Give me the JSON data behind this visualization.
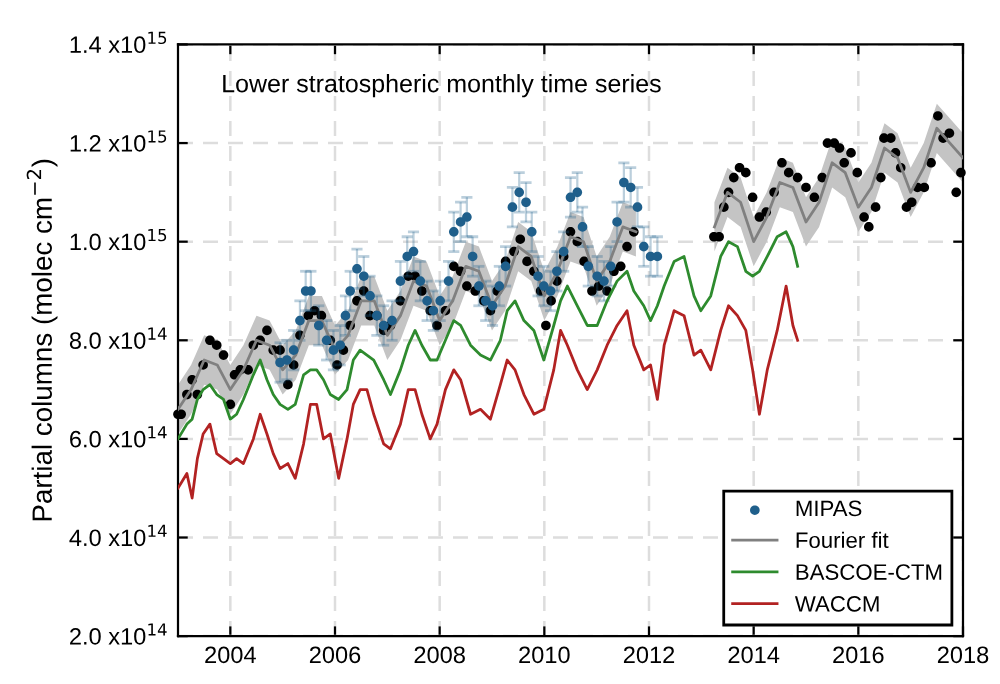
{
  "chart_data": {
    "type": "scatter",
    "title": "Lower stratospheric monthly time series",
    "ylabel": "Partial columns (molec cm$^{−2}$)",
    "xlim": [
      2003,
      2018
    ],
    "xticks": [
      2004,
      2006,
      2008,
      2010,
      2012,
      2014,
      2016,
      2018
    ],
    "ylim": [
      200000000000000.0,
      1400000000000000.0
    ],
    "yticks": [
      {
        "value": 200000000000000.0,
        "label": "2.0 x10$^{14}$"
      },
      {
        "value": 400000000000000.0,
        "label": "4.0 x10$^{14}$"
      },
      {
        "value": 600000000000000.0,
        "label": "6.0 x10$^{14}$"
      },
      {
        "value": 800000000000000.0,
        "label": "8.0 x10$^{14}$"
      },
      {
        "value": 1000000000000000.0,
        "label": "1.0 x10$^{15}$"
      },
      {
        "value": 1200000000000000.0,
        "label": "1.2 x10$^{15}$"
      },
      {
        "value": 1400000000000000.0,
        "label": "1.4 x10$^{15}$"
      }
    ],
    "grid": true,
    "legend": "bottom right",
    "series": [
      {
        "color": "#000000",
        "x": [
          2003.0,
          2003.06,
          2003.17,
          2003.27,
          2003.37,
          2003.48,
          2003.61,
          2003.74,
          2003.87,
          2004.0,
          2004.08,
          2004.19,
          2004.34,
          2004.44,
          2004.57,
          2004.7,
          2004.82,
          2004.95,
          2005.1,
          2005.21,
          2005.33,
          2005.49,
          2005.61,
          2005.74,
          2005.91,
          2006.04,
          2006.16,
          2006.29,
          2006.42,
          2006.55,
          2006.67,
          2006.8,
          2006.93,
          2007.06,
          2007.25,
          2007.4,
          2007.53,
          2007.66,
          2007.82,
          2007.95,
          2008.11,
          2008.27,
          2008.4,
          2008.52,
          2008.68,
          2008.84,
          2008.97,
          2009.1,
          2009.26,
          2009.42,
          2009.54,
          2009.67,
          2009.8,
          2009.93,
          2010.03,
          2010.13,
          2010.24,
          2010.37,
          2010.5,
          2010.63,
          2010.76,
          2010.91,
          2011.04,
          2011.2,
          2011.33,
          2011.46,
          2011.58,
          2011.71,
          2013.24,
          2013.34,
          2013.43,
          2013.52,
          2013.62,
          2013.73,
          2013.85,
          2013.98,
          2014.11,
          2014.24,
          2014.39,
          2014.54,
          2014.67,
          2014.84,
          2015.0,
          2015.16,
          2015.31,
          2015.41,
          2015.54,
          2015.64,
          2015.73,
          2015.86,
          2015.98,
          2016.11,
          2016.2,
          2016.33,
          2016.43,
          2016.49,
          2016.62,
          2016.71,
          2016.81,
          2016.92,
          2017.02,
          2017.13,
          2017.26,
          2017.39,
          2017.52,
          2017.62,
          2017.74,
          2017.87,
          2017.96
        ],
        "values": [
          650000000000000.0,
          650000000000000.0,
          690000000000000.0,
          720000000000000.0,
          690000000000000.0,
          750000000000000.0,
          800000000000000.0,
          790000000000000.0,
          770000000000000.0,
          670000000000000.0,
          730000000000000.0,
          740000000000000.0,
          740000000000000.0,
          790000000000000.0,
          800000000000000.0,
          820000000000000.0,
          780000000000000.0,
          780000000000000.0,
          710000000000000.0,
          750000000000000.0,
          810000000000000.0,
          850000000000000.0,
          860000000000000.0,
          850000000000000.0,
          800000000000000.0,
          750000000000000.0,
          780000000000000.0,
          830000000000000.0,
          880000000000000.0,
          900000000000000.0,
          850000000000000.0,
          850000000000000.0,
          820000000000000.0,
          830000000000000.0,
          880000000000000.0,
          930000000000000.0,
          930000000000000.0,
          900000000000000.0,
          860000000000000.0,
          830000000000000.0,
          860000000000000.0,
          950000000000000.0,
          940000000000000.0,
          910000000000000.0,
          900000000000000.0,
          880000000000000.0,
          860000000000000.0,
          900000000000000.0,
          960000000000000.0,
          980000000000000.0,
          1005000000000000.0,
          960000000000000.0,
          940000000000000.0,
          900000000000000.0,
          830000000000000.0,
          880000000000000.0,
          920000000000000.0,
          970000000000000.0,
          1020000000000000.0,
          1000000000000000.0,
          960000000000000.0,
          900000000000000.0,
          910000000000000.0,
          900000000000000.0,
          940000000000000.0,
          950000000000000.0,
          990000000000000.0,
          1020000000000000.0,
          1010000000000000.0,
          1010000000000000.0,
          1070000000000000.0,
          1100000000000000.0,
          1130000000000000.0,
          1150000000000000.0,
          1140000000000000.0,
          1090000000000000.0,
          1050000000000000.0,
          1060000000000000.0,
          1100000000000000.0,
          1160000000000000.0,
          1140000000000000.0,
          1130000000000000.0,
          1110000000000000.0,
          1090000000000000.0,
          1130000000000000.0,
          1200000000000000.0,
          1200000000000000.0,
          1190000000000000.0,
          1160000000000000.0,
          1180000000000000.0,
          1140000000000000.0,
          1050000000000000.0,
          1030000000000000.0,
          1070000000000000.0,
          1130000000000000.0,
          1210000000000000.0,
          1210000000000000.0,
          1180000000000000.0,
          1150000000000000.0,
          1070000000000000.0,
          1080000000000000.0,
          1110000000000000.0,
          1110000000000000.0,
          1160000000000000.0,
          1255000000000000.0,
          1210000000000000.0,
          1220000000000000.0,
          1100000000000000.0,
          1140000000000000.0
        ]
      },
      {
        "name": "MIPAS",
        "color": "#1f5f8b",
        "x": [
          2004.95,
          2005.08,
          2005.21,
          2005.33,
          2005.44,
          2005.54,
          2005.69,
          2005.84,
          2005.97,
          2006.1,
          2006.2,
          2006.29,
          2006.42,
          2006.55,
          2006.67,
          2006.8,
          2006.93,
          2007.09,
          2007.25,
          2007.38,
          2007.5,
          2007.63,
          2007.76,
          2007.88,
          2008.01,
          2008.17,
          2008.27,
          2008.4,
          2008.52,
          2008.63,
          2008.75,
          2008.88,
          2009.01,
          2009.14,
          2009.26,
          2009.39,
          2009.52,
          2009.65,
          2009.76,
          2009.88,
          2009.99,
          2010.12,
          2010.24,
          2010.37,
          2010.5,
          2010.63,
          2010.73,
          2010.84,
          2011.01,
          2011.14,
          2011.27,
          2011.39,
          2011.52,
          2011.65,
          2011.78,
          2011.9,
          2012.03,
          2012.16
        ],
        "values": [
          755000000000000.0,
          760000000000000.0,
          780000000000000.0,
          840000000000000.0,
          900000000000000.0,
          900000000000000.0,
          830000000000000.0,
          800000000000000.0,
          780000000000000.0,
          790000000000000.0,
          850000000000000.0,
          900000000000000.0,
          945000000000000.0,
          930000000000000.0,
          890000000000000.0,
          850000000000000.0,
          830000000000000.0,
          840000000000000.0,
          920000000000000.0,
          970000000000000.0,
          980000000000000.0,
          920000000000000.0,
          880000000000000.0,
          860000000000000.0,
          880000000000000.0,
          920000000000000.0,
          1020000000000000.0,
          1040000000000000.0,
          1050000000000000.0,
          970000000000000.0,
          910000000000000.0,
          880000000000000.0,
          870000000000000.0,
          910000000000000.0,
          950000000000000.0,
          1070000000000000.0,
          1100000000000000.0,
          1080000000000000.0,
          1020000000000000.0,
          930000000000000.0,
          910000000000000.0,
          900000000000000.0,
          940000000000000.0,
          980000000000000.0,
          1090000000000000.0,
          1100000000000000.0,
          1030000000000000.0,
          950000000000000.0,
          930000000000000.0,
          920000000000000.0,
          950000000000000.0,
          1040000000000000.0,
          1120000000000000.0,
          1110000000000000.0,
          1070000000000000.0,
          990000000000000.0,
          970000000000000.0,
          970000000000000.0
        ],
        "errors": [
          40000000000000.0,
          40000000000000.0,
          40000000000000.0,
          40000000000000.0,
          40000000000000.0,
          40000000000000.0,
          40000000000000.0,
          40000000000000.0,
          40000000000000.0,
          40000000000000.0,
          40000000000000.0,
          40000000000000.0,
          40000000000000.0,
          40000000000000.0,
          40000000000000.0,
          40000000000000.0,
          40000000000000.0,
          40000000000000.0,
          40000000000000.0,
          40000000000000.0,
          40000000000000.0,
          40000000000000.0,
          40000000000000.0,
          40000000000000.0,
          40000000000000.0,
          40000000000000.0,
          40000000000000.0,
          40000000000000.0,
          40000000000000.0,
          40000000000000.0,
          40000000000000.0,
          40000000000000.0,
          40000000000000.0,
          40000000000000.0,
          40000000000000.0,
          40000000000000.0,
          40000000000000.0,
          40000000000000.0,
          40000000000000.0,
          40000000000000.0,
          40000000000000.0,
          40000000000000.0,
          40000000000000.0,
          40000000000000.0,
          40000000000000.0,
          40000000000000.0,
          40000000000000.0,
          40000000000000.0,
          40000000000000.0,
          40000000000000.0,
          40000000000000.0,
          40000000000000.0,
          40000000000000.0,
          40000000000000.0,
          40000000000000.0,
          40000000000000.0,
          40000000000000.0,
          40000000000000.0
        ]
      },
      {
        "type": "line",
        "name": "Fourier fit",
        "color": "#808080",
        "x": [
          2003.0,
          2003.25,
          2003.5,
          2003.75,
          2004.0,
          2004.25,
          2004.5,
          2004.75,
          2005.0,
          2005.25,
          2005.5,
          2005.75,
          2006.0,
          2006.25,
          2006.5,
          2006.75,
          2007.0,
          2007.25,
          2007.5,
          2007.75,
          2008.0,
          2008.25,
          2008.5,
          2008.75,
          2009.0,
          2009.25,
          2009.5,
          2009.75,
          2010.0,
          2010.25,
          2010.5,
          2010.75,
          2011.0,
          2011.25,
          2011.5,
          2011.75,
          2012.5,
          2013.25,
          2013.5,
          2013.75,
          2014.0,
          2014.25,
          2014.5,
          2014.75,
          2015.0,
          2015.25,
          2015.5,
          2015.75,
          2016.0,
          2016.25,
          2016.5,
          2016.75,
          2017.0,
          2017.25,
          2017.5,
          2017.75,
          2018.0
        ],
        "values": [
          660000000000000.0,
          700000000000000.0,
          760000000000000.0,
          750000000000000.0,
          700000000000000.0,
          740000000000000.0,
          800000000000000.0,
          790000000000000.0,
          740000000000000.0,
          770000000000000.0,
          840000000000000.0,
          840000000000000.0,
          780000000000000.0,
          810000000000000.0,
          880000000000000.0,
          880000000000000.0,
          810000000000000.0,
          850000000000000.0,
          920000000000000.0,
          910000000000000.0,
          840000000000000.0,
          880000000000000.0,
          950000000000000.0,
          940000000000000.0,
          870000000000000.0,
          910000000000000.0,
          990000000000000.0,
          970000000000000.0,
          890000000000000.0,
          940000000000000.0,
          1010000000000000.0,
          1000000000000000.0,
          920000000000000.0,
          960000000000000.0,
          1030000000000000.0,
          1020000000000000.0,
          null,
          1030000000000000.0,
          1100000000000000.0,
          1080000000000000.0,
          1000000000000000.0,
          1050000000000000.0,
          1120000000000000.0,
          1110000000000000.0,
          1040000000000000.0,
          1080000000000000.0,
          1160000000000000.0,
          1140000000000000.0,
          1070000000000000.0,
          1110000000000000.0,
          1190000000000000.0,
          1170000000000000.0,
          1100000000000000.0,
          1150000000000000.0,
          1230000000000000.0,
          1200000000000000.0,
          1170000000000000.0
        ],
        "lower": [
          610000000000000.0,
          650000000000000.0,
          710000000000000.0,
          700000000000000.0,
          650000000000000.0,
          690000000000000.0,
          750000000000000.0,
          740000000000000.0,
          690000000000000.0,
          720000000000000.0,
          790000000000000.0,
          790000000000000.0,
          730000000000000.0,
          760000000000000.0,
          830000000000000.0,
          830000000000000.0,
          760000000000000.0,
          800000000000000.0,
          870000000000000.0,
          860000000000000.0,
          790000000000000.0,
          830000000000000.0,
          900000000000000.0,
          890000000000000.0,
          820000000000000.0,
          860000000000000.0,
          940000000000000.0,
          920000000000000.0,
          840000000000000.0,
          890000000000000.0,
          960000000000000.0,
          950000000000000.0,
          870000000000000.0,
          910000000000000.0,
          980000000000000.0,
          970000000000000.0,
          null,
          980000000000000.0,
          1050000000000000.0,
          1030000000000000.0,
          950000000000000.0,
          1000000000000000.0,
          1070000000000000.0,
          1060000000000000.0,
          990000000000000.0,
          1030000000000000.0,
          1110000000000000.0,
          1090000000000000.0,
          1020000000000000.0,
          1060000000000000.0,
          1140000000000000.0,
          1120000000000000.0,
          1050000000000000.0,
          1100000000000000.0,
          1180000000000000.0,
          1150000000000000.0,
          1120000000000000.0
        ],
        "upper": [
          710000000000000.0,
          750000000000000.0,
          810000000000000.0,
          800000000000000.0,
          750000000000000.0,
          790000000000000.0,
          850000000000000.0,
          840000000000000.0,
          790000000000000.0,
          820000000000000.0,
          890000000000000.0,
          890000000000000.0,
          830000000000000.0,
          860000000000000.0,
          930000000000000.0,
          930000000000000.0,
          860000000000000.0,
          900000000000000.0,
          970000000000000.0,
          960000000000000.0,
          890000000000000.0,
          930000000000000.0,
          1000000000000000.0,
          990000000000000.0,
          920000000000000.0,
          960000000000000.0,
          1040000000000000.0,
          1020000000000000.0,
          940000000000000.0,
          990000000000000.0,
          1060000000000000.0,
          1050000000000000.0,
          970000000000000.0,
          1010000000000000.0,
          1080000000000000.0,
          1070000000000000.0,
          null,
          1080000000000000.0,
          1150000000000000.0,
          1130000000000000.0,
          1050000000000000.0,
          1100000000000000.0,
          1170000000000000.0,
          1160000000000000.0,
          1090000000000000.0,
          1130000000000000.0,
          1210000000000000.0,
          1190000000000000.0,
          1120000000000000.0,
          1160000000000000.0,
          1240000000000000.0,
          1220000000000000.0,
          1150000000000000.0,
          1200000000000000.0,
          1280000000000000.0,
          1250000000000000.0,
          1220000000000000.0
        ]
      },
      {
        "type": "line",
        "name": "BASCOE-CTM",
        "color": "#2e8b2e",
        "x": [
          2003.0,
          2003.17,
          2003.27,
          2003.37,
          2003.48,
          2003.61,
          2003.74,
          2003.87,
          2004.0,
          2004.12,
          2004.25,
          2004.44,
          2004.57,
          2004.7,
          2004.82,
          2004.95,
          2005.1,
          2005.24,
          2005.4,
          2005.53,
          2005.65,
          2005.78,
          2005.91,
          2006.07,
          2006.23,
          2006.35,
          2006.48,
          2006.61,
          2006.74,
          2006.93,
          2007.06,
          2007.25,
          2007.4,
          2007.53,
          2007.66,
          2007.82,
          2007.95,
          2008.11,
          2008.27,
          2008.4,
          2008.59,
          2008.78,
          2008.97,
          2009.16,
          2009.29,
          2009.44,
          2009.61,
          2009.8,
          2009.99,
          2010.18,
          2010.31,
          2010.44,
          2010.63,
          2010.82,
          2011.01,
          2011.2,
          2011.39,
          2011.58,
          2011.71,
          2011.9,
          2012.03,
          2012.16,
          2012.29,
          2012.48,
          2012.67,
          2012.86,
          2012.99,
          2013.18,
          2013.37,
          2013.52,
          2013.69,
          2013.85,
          2013.98,
          2014.11,
          2014.26,
          2014.45,
          2014.62,
          2014.75,
          2014.84
        ],
        "values": [
          600000000000000.0,
          630000000000000.0,
          640000000000000.0,
          680000000000000.0,
          700000000000000.0,
          710000000000000.0,
          690000000000000.0,
          680000000000000.0,
          640000000000000.0,
          650000000000000.0,
          680000000000000.0,
          730000000000000.0,
          760000000000000.0,
          720000000000000.0,
          690000000000000.0,
          670000000000000.0,
          660000000000000.0,
          670000000000000.0,
          730000000000000.0,
          740000000000000.0,
          740000000000000.0,
          720000000000000.0,
          690000000000000.0,
          680000000000000.0,
          700000000000000.0,
          760000000000000.0,
          780000000000000.0,
          770000000000000.0,
          760000000000000.0,
          720000000000000.0,
          690000000000000.0,
          740000000000000.0,
          790000000000000.0,
          820000000000000.0,
          790000000000000.0,
          760000000000000.0,
          760000000000000.0,
          800000000000000.0,
          840000000000000.0,
          830000000000000.0,
          790000000000000.0,
          770000000000000.0,
          760000000000000.0,
          800000000000000.0,
          860000000000000.0,
          880000000000000.0,
          840000000000000.0,
          820000000000000.0,
          760000000000000.0,
          830000000000000.0,
          880000000000000.0,
          910000000000000.0,
          870000000000000.0,
          830000000000000.0,
          830000000000000.0,
          880000000000000.0,
          920000000000000.0,
          940000000000000.0,
          900000000000000.0,
          870000000000000.0,
          840000000000000.0,
          870000000000000.0,
          910000000000000.0,
          960000000000000.0,
          970000000000000.0,
          890000000000000.0,
          860000000000000.0,
          890000000000000.0,
          970000000000000.0,
          1000000000000000.0,
          990000000000000.0,
          940000000000000.0,
          930000000000000.0,
          940000000000000.0,
          970000000000000.0,
          1010000000000000.0,
          1020000000000000.0,
          990000000000000.0,
          950000000000000.0
        ]
      },
      {
        "type": "line",
        "name": "WACCM",
        "color": "#b22222",
        "x": [
          2003.0,
          2003.17,
          2003.27,
          2003.37,
          2003.48,
          2003.61,
          2003.74,
          2003.87,
          2004.0,
          2004.12,
          2004.25,
          2004.44,
          2004.57,
          2004.7,
          2004.82,
          2004.95,
          2005.1,
          2005.24,
          2005.4,
          2005.53,
          2005.65,
          2005.78,
          2005.91,
          2006.07,
          2006.23,
          2006.35,
          2006.48,
          2006.61,
          2006.74,
          2006.93,
          2007.06,
          2007.25,
          2007.4,
          2007.53,
          2007.66,
          2007.82,
          2007.95,
          2008.11,
          2008.27,
          2008.4,
          2008.59,
          2008.78,
          2008.97,
          2009.16,
          2009.29,
          2009.44,
          2009.61,
          2009.8,
          2009.99,
          2010.18,
          2010.31,
          2010.44,
          2010.63,
          2010.82,
          2011.01,
          2011.2,
          2011.39,
          2011.58,
          2011.71,
          2011.9,
          2012.03,
          2012.16,
          2012.29,
          2012.48,
          2012.67,
          2012.86,
          2012.99,
          2013.18,
          2013.37,
          2013.52,
          2013.69,
          2013.85,
          2013.98,
          2014.11,
          2014.26,
          2014.45,
          2014.62,
          2014.75,
          2014.84
        ],
        "values": [
          500000000000000.0,
          530000000000000.0,
          480000000000000.0,
          560000000000000.0,
          610000000000000.0,
          630000000000000.0,
          570000000000000.0,
          560000000000000.0,
          550000000000000.0,
          560000000000000.0,
          550000000000000.0,
          600000000000000.0,
          650000000000000.0,
          610000000000000.0,
          570000000000000.0,
          540000000000000.0,
          550000000000000.0,
          520000000000000.0,
          590000000000000.0,
          670000000000000.0,
          670000000000000.0,
          600000000000000.0,
          610000000000000.0,
          520000000000000.0,
          600000000000000.0,
          670000000000000.0,
          700000000000000.0,
          700000000000000.0,
          650000000000000.0,
          590000000000000.0,
          580000000000000.0,
          630000000000000.0,
          700000000000000.0,
          700000000000000.0,
          650000000000000.0,
          600000000000000.0,
          630000000000000.0,
          700000000000000.0,
          740000000000000.0,
          720000000000000.0,
          650000000000000.0,
          660000000000000.0,
          640000000000000.0,
          710000000000000.0,
          760000000000000.0,
          740000000000000.0,
          690000000000000.0,
          650000000000000.0,
          660000000000000.0,
          740000000000000.0,
          820000000000000.0,
          790000000000000.0,
          740000000000000.0,
          700000000000000.0,
          740000000000000.0,
          790000000000000.0,
          830000000000000.0,
          860000000000000.0,
          790000000000000.0,
          740000000000000.0,
          750000000000000.0,
          680000000000000.0,
          790000000000000.0,
          860000000000000.0,
          850000000000000.0,
          770000000000000.0,
          780000000000000.0,
          740000000000000.0,
          820000000000000.0,
          870000000000000.0,
          850000000000000.0,
          820000000000000.0,
          740000000000000.0,
          650000000000000.0,
          740000000000000.0,
          820000000000000.0,
          910000000000000.0,
          830000000000000.0,
          800000000000000.0
        ]
      }
    ]
  }
}
